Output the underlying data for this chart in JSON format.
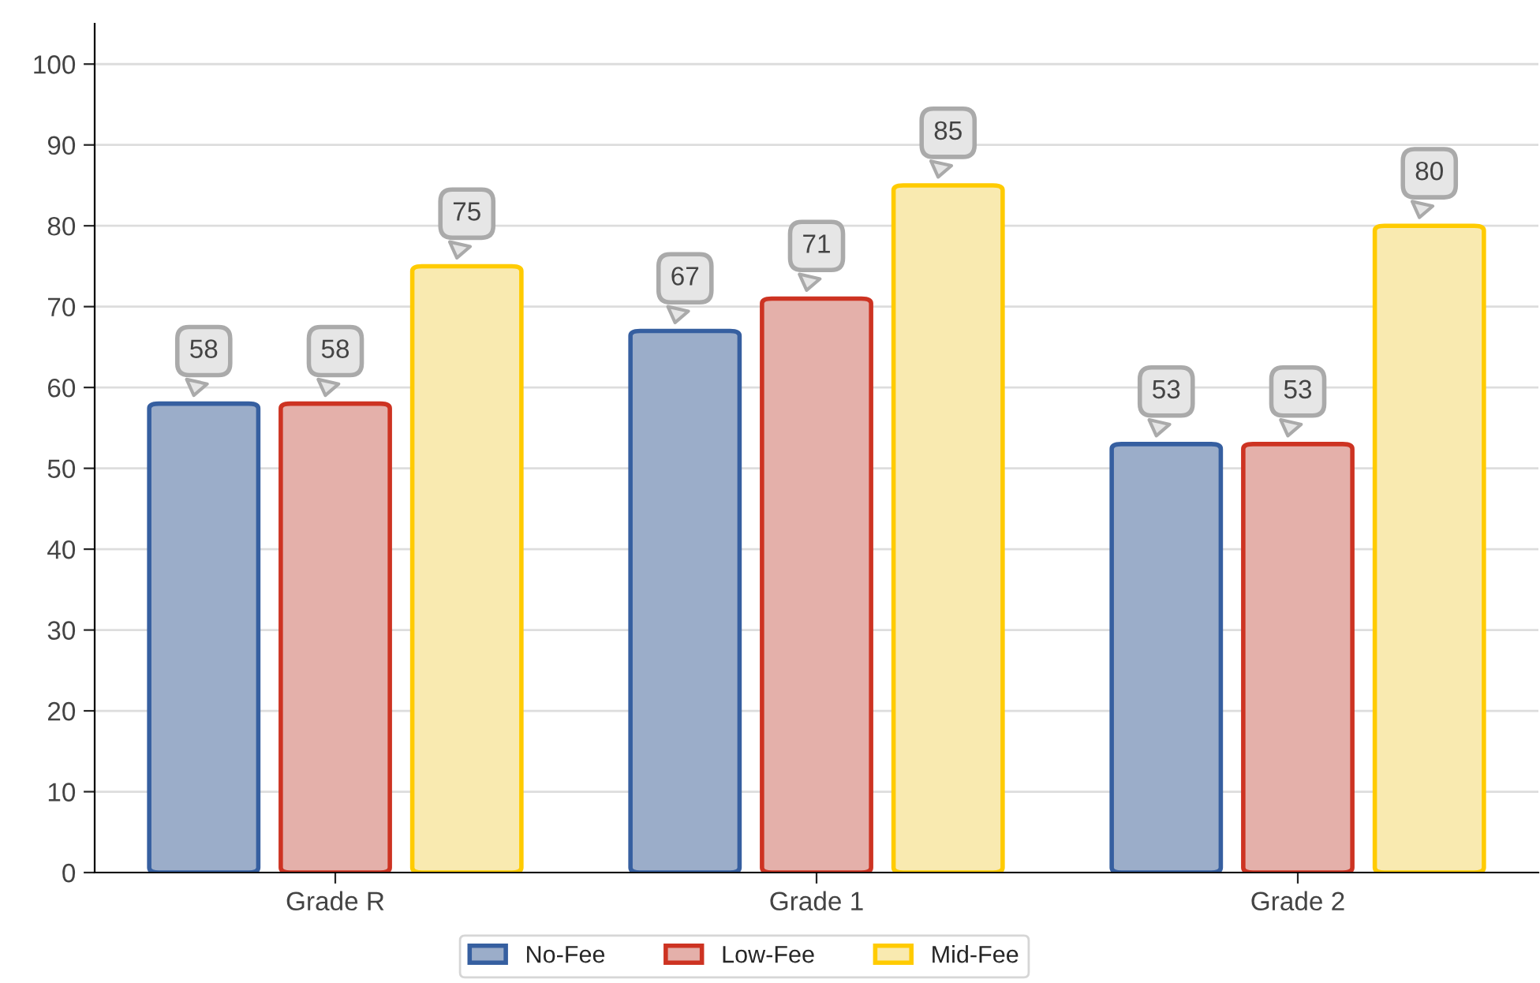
{
  "chart_data": {
    "type": "bar",
    "categories": [
      "Grade R",
      "Grade 1",
      "Grade 2"
    ],
    "series": [
      {
        "name": "No-Fee",
        "color": "#9badc9",
        "values": [
          58,
          67,
          53
        ]
      },
      {
        "name": "Low-Fee",
        "color": "#e4b0aa",
        "values": [
          58,
          71,
          53
        ]
      },
      {
        "name": "Mid-Fee",
        "color": "#f9eab0",
        "values": [
          75,
          85,
          80
        ]
      }
    ],
    "ylim": [
      0,
      105
    ],
    "yticks": [
      0,
      10,
      20,
      30,
      40,
      50,
      60,
      70,
      80,
      90,
      100
    ],
    "grid": "y",
    "legend": "bottom",
    "data_labels": true
  }
}
